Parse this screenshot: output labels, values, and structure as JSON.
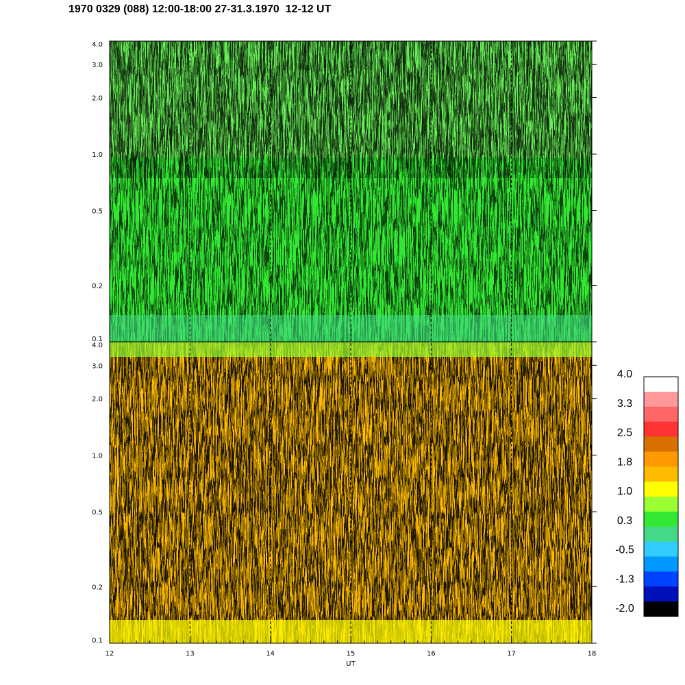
{
  "header": {
    "title": "1970 0329 (088) 12:00-18:00 27-31.3.1970  12-12 UT"
  },
  "chart_data": {
    "type": "heatmap",
    "title": "1970 0329 (088) 12:00-18:00 27-31.3.1970  12-12 UT",
    "xlabel": "UT",
    "xlim": [
      12,
      18
    ],
    "x_ticks": [
      "12",
      "13",
      "14",
      "15",
      "16",
      "17",
      "18"
    ],
    "x_dashed_lines": [
      13,
      14,
      15,
      16,
      17
    ],
    "ylabel": "",
    "y_scale": "log",
    "ylim": [
      0.1,
      4.0
    ],
    "y_ticks": [
      0.1,
      0.2,
      0.5,
      1.0,
      2.0,
      3.0,
      4.0
    ],
    "y_tick_labels": [
      "0.1",
      "0.2",
      "0.5",
      "1.0",
      "2.0",
      "3.0",
      "4.0"
    ],
    "panels": [
      {
        "name": "upper",
        "dominant_level": "0.3",
        "description_levels": [
          "-0.5",
          "0.3",
          "1.0"
        ]
      },
      {
        "name": "lower",
        "dominant_level": "1.8",
        "description_levels": [
          "1.0",
          "1.8",
          "2.5"
        ]
      }
    ],
    "colorbar": {
      "labels": [
        "4.0",
        "3.3",
        "2.5",
        "1.8",
        "1.0",
        "0.3",
        "-0.5",
        "-1.3",
        "-2.0"
      ],
      "colors": [
        "#ffffff",
        "#ff9999",
        "#ff6666",
        "#ff3333",
        "#d87000",
        "#ff9900",
        "#ffbb00",
        "#ffff00",
        "#99ff33",
        "#33e833",
        "#44d988",
        "#33ccff",
        "#0099ff",
        "#0044ff",
        "#0011bb",
        "#000000"
      ]
    },
    "grid": false
  }
}
